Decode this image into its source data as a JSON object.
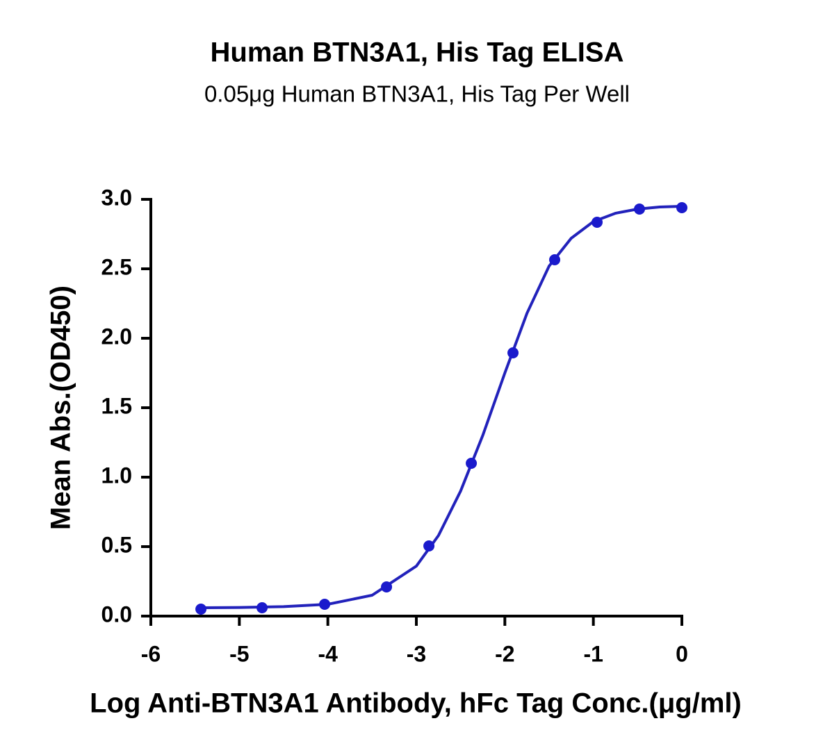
{
  "chart_data": {
    "type": "scatter",
    "title": "Human BTN3A1, His Tag ELISA",
    "subtitle": "0.05μg Human BTN3A1, His Tag Per Well",
    "x_label": "Log Anti-BTN3A1 Antibody, hFc Tag Conc.(μg/ml)",
    "y_label": "Mean Abs.(OD450)",
    "xlim": [
      -6,
      0
    ],
    "xticks": [
      -6,
      -5,
      -4,
      -3,
      -2,
      -1,
      0
    ],
    "ylim": [
      0,
      3
    ],
    "yticks": [
      {
        "value": 0,
        "label": "0.0"
      },
      0.5,
      {
        "value": 1,
        "label": "1.0"
      },
      1.5,
      {
        "value": 2,
        "label": "2.0"
      },
      2.5,
      {
        "value": 3,
        "label": "3.0"
      }
    ],
    "series": [
      {
        "color": "#1a1acc",
        "x": [
          -5.434,
          -4.743,
          -4.036,
          -3.337,
          -2.858,
          -2.379,
          -1.908,
          -1.437,
          -0.958,
          -0.479,
          0
        ],
        "values": [
          0.05,
          0.06,
          0.085,
          0.21,
          0.505,
          1.1,
          1.895,
          2.565,
          2.835,
          2.93,
          2.94
        ]
      }
    ],
    "curve": {
      "color": "#2222bb",
      "x": [
        -5.43,
        -5,
        -4.5,
        -4,
        -3.5,
        -3,
        -2.75,
        -2.5,
        -2.25,
        -2,
        -1.75,
        -1.5,
        -1.25,
        -1,
        -0.75,
        -0.5,
        -0.25,
        0
      ],
      "values": [
        0.06,
        0.062,
        0.068,
        0.085,
        0.15,
        0.36,
        0.58,
        0.9,
        1.3,
        1.75,
        2.18,
        2.52,
        2.72,
        2.84,
        2.9,
        2.93,
        2.945,
        2.95
      ]
    }
  }
}
